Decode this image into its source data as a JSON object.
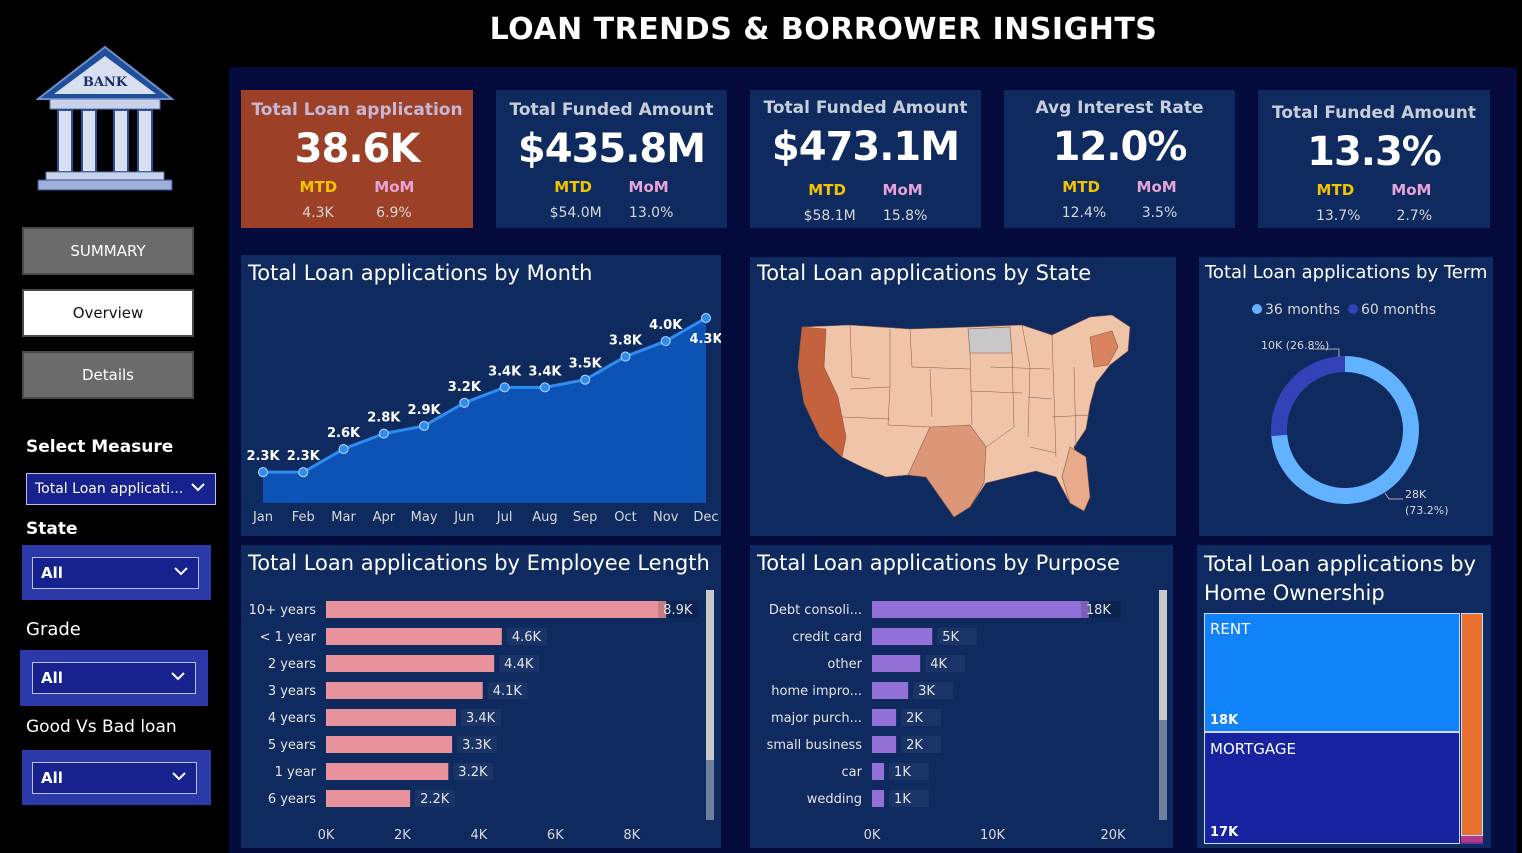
{
  "title": "LOAN TRENDS & BORROWER INSIGHTS",
  "logo": {
    "text": "BANK"
  },
  "nav": [
    {
      "label": "SUMMARY",
      "active": false
    },
    {
      "label": "Overview",
      "active": true
    },
    {
      "label": "Details",
      "active": false
    }
  ],
  "slicers": {
    "measure": {
      "label": "Select Measure",
      "value": "Total Loan applicati..."
    },
    "state": {
      "label": "State",
      "value": "All"
    },
    "grade": {
      "label": "Grade",
      "value": "All"
    },
    "good_bad": {
      "label": "Good Vs Bad loan",
      "value": "All"
    }
  },
  "kpis": [
    {
      "title": "Total Loan application",
      "value": "38.6K",
      "mtd_label": "MTD",
      "mom_label": "MoM",
      "mtd": "4.3K",
      "mom": "6.9%"
    },
    {
      "title": "Total Funded Amount",
      "value": "$435.8M",
      "mtd_label": "MTD",
      "mom_label": "MoM",
      "mtd": "$54.0M",
      "mom": "13.0%"
    },
    {
      "title": "Total Funded Amount",
      "value": "$473.1M",
      "mtd_label": "MTD",
      "mom_label": "MoM",
      "mtd": "$58.1M",
      "mom": "15.8%"
    },
    {
      "title": "Avg Interest Rate",
      "value": "12.0%",
      "mtd_label": "MTD",
      "mom_label": "MoM",
      "mtd": "12.4%",
      "mom": "3.5%"
    },
    {
      "title": "Total Funded Amount",
      "value": "13.3%",
      "mtd_label": "MTD",
      "mom_label": "MoM",
      "mtd": "13.7%",
      "mom": "2.7%"
    }
  ],
  "colors": {
    "area": "#0d52b5",
    "line": "#2f8cf0",
    "bar_emp": "#e8939b",
    "bar_purpose": "#9370d8",
    "donut_36": "#62b2ff",
    "donut_60": "#3342b6",
    "rent": "#1083fb",
    "mortgage": "#1723a0",
    "other_own": "#e8722f"
  },
  "chart_data": [
    {
      "type": "area",
      "title": "Total Loan applications by Month",
      "categories": [
        "Jan",
        "Feb",
        "Mar",
        "Apr",
        "May",
        "Jun",
        "Jul",
        "Aug",
        "Sep",
        "Oct",
        "Nov",
        "Dec"
      ],
      "values": [
        2.3,
        2.3,
        2.6,
        2.8,
        2.9,
        3.2,
        3.4,
        3.4,
        3.5,
        3.8,
        4.0,
        4.3
      ],
      "labels": [
        "2.3K",
        "2.3K",
        "2.6K",
        "2.8K",
        "2.9K",
        "3.2K",
        "3.4K",
        "3.4K",
        "3.5K",
        "3.8K",
        "4.0K",
        "4.3K"
      ]
    },
    {
      "type": "map",
      "title": "Total Loan applications by State"
    },
    {
      "type": "pie",
      "title": "Total Loan applications by Term",
      "legend": [
        "36 months",
        "60 months"
      ],
      "values": [
        28,
        10
      ],
      "labels": [
        "28K",
        "10K (26.8%)"
      ],
      "pct_36": "(73.2%)"
    },
    {
      "type": "bar",
      "title": "Total Loan applications by Employee Length",
      "categories": [
        "10+ years",
        "< 1 year",
        "2 years",
        "3 years",
        "4 years",
        "5 years",
        "1 year",
        "6 years"
      ],
      "values": [
        8.9,
        4.6,
        4.4,
        4.1,
        3.4,
        3.3,
        3.2,
        2.2
      ],
      "labels": [
        "8.9K",
        "4.6K",
        "4.4K",
        "4.1K",
        "3.4K",
        "3.3K",
        "3.2K",
        "2.2K"
      ],
      "xticks": [
        "0K",
        "2K",
        "4K",
        "6K",
        "8K"
      ],
      "xlim": [
        0,
        9
      ]
    },
    {
      "type": "bar",
      "title": "Total Loan applications by Purpose",
      "categories": [
        "Debt consoli...",
        "credit card",
        "other",
        "home impro...",
        "major purch...",
        "small business",
        "car",
        "wedding"
      ],
      "values": [
        18,
        5,
        4,
        3,
        2,
        2,
        1,
        1
      ],
      "labels": [
        "18K",
        "5K",
        "4K",
        "3K",
        "2K",
        "2K",
        "1K",
        "1K"
      ],
      "xticks": [
        "0K",
        "10K",
        "20K"
      ],
      "xlim": [
        0,
        20
      ]
    },
    {
      "type": "treemap",
      "title_line1": "Total Loan applications by",
      "title_line2": "Home Ownership",
      "items": [
        {
          "name": "RENT",
          "label": "18K"
        },
        {
          "name": "MORTGAGE",
          "label": "17K"
        }
      ]
    }
  ]
}
